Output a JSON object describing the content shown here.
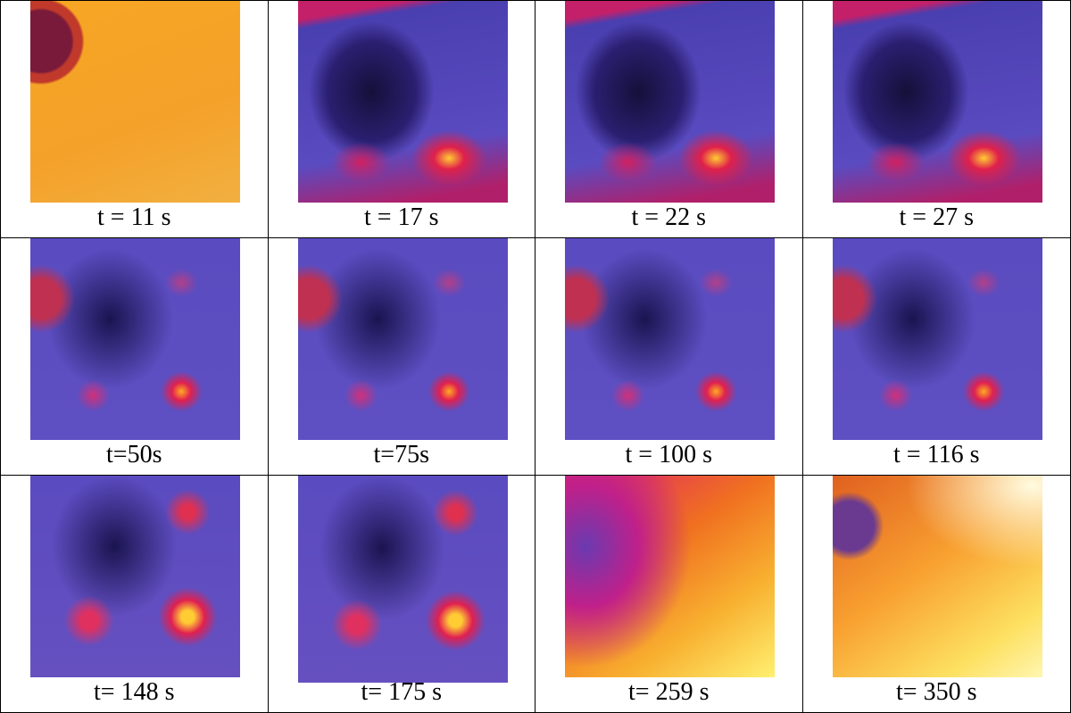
{
  "panels": [
    {
      "label": "t = 11 s"
    },
    {
      "label": "t = 17 s"
    },
    {
      "label": "t = 22 s"
    },
    {
      "label": "t = 27 s"
    },
    {
      "label": "t=50s"
    },
    {
      "label": "t=75s"
    },
    {
      "label": "t = 100 s"
    },
    {
      "label": "t = 116 s"
    },
    {
      "label": "t= 148 s"
    },
    {
      "label": "t= 175 s"
    },
    {
      "label": "t= 259 s"
    },
    {
      "label": "t= 350 s"
    }
  ]
}
